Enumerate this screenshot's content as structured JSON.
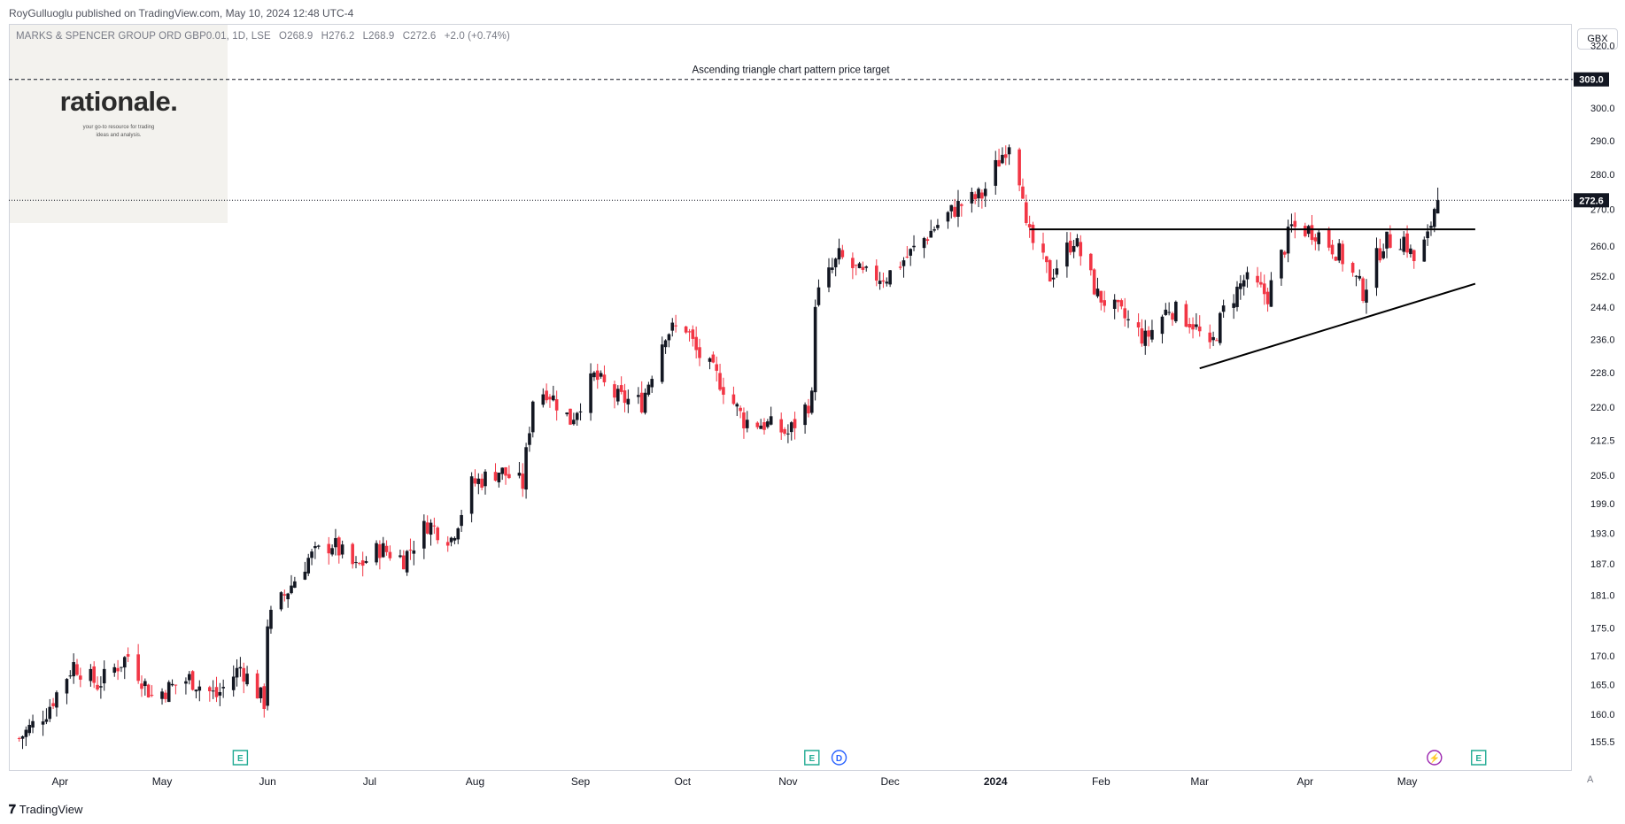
{
  "header": {
    "published": "RoyGulluoglu published on TradingView.com, May 10, 2024 12:48 UTC-4",
    "symbol_parts": [
      "MARKS & SPENCER GROUP ORD GBP0.01, 1D, LSE",
      "O268.9",
      "H276.2",
      "L268.9",
      "C272.6",
      "+2.0 (+0.74%)"
    ]
  },
  "watermark": {
    "logo_text": "rationale.",
    "tagline_line1": "your go-to resource for trading",
    "tagline_line2": "ideas and analysis."
  },
  "footer": {
    "brand": "TradingView",
    "currency_button": "GBX",
    "auto_label": "A"
  },
  "annotations": {
    "target_label": "Ascending triangle chart pattern price target",
    "target_price": "309.0",
    "last_price": "272.6"
  },
  "colors": {
    "up": "#131722",
    "down": "#f23645",
    "frame": "#d1d4dc",
    "axis_text": "#131722",
    "event_earnings": "#22ab94",
    "event_dividend": "#2962ff",
    "event_split": "#9c27b0"
  },
  "chart_data": {
    "type": "candlestick",
    "y_scale": "log",
    "ylim": [
      151,
      327
    ],
    "ylabel": "GBX",
    "y_ticks": [
      155.5,
      160.0,
      165.0,
      170.0,
      175.0,
      181.0,
      187.0,
      193.0,
      199.0,
      205.0,
      212.5,
      220.0,
      228.0,
      236.0,
      244.0,
      252.0,
      260.0,
      270.0,
      280.0,
      290.0,
      300.0,
      320.0
    ],
    "x_ticks": [
      {
        "label": "Apr",
        "date": "2023-04-01"
      },
      {
        "label": "May",
        "date": "2023-05-01"
      },
      {
        "label": "Jun",
        "date": "2023-06-01"
      },
      {
        "label": "Jul",
        "date": "2023-07-01"
      },
      {
        "label": "Aug",
        "date": "2023-08-01"
      },
      {
        "label": "Sep",
        "date": "2023-09-01"
      },
      {
        "label": "Oct",
        "date": "2023-10-01"
      },
      {
        "label": "Nov",
        "date": "2023-11-01"
      },
      {
        "label": "Dec",
        "date": "2023-12-01"
      },
      {
        "label": "2024",
        "date": "2024-01-01",
        "bold": true
      },
      {
        "label": "Feb",
        "date": "2024-02-01"
      },
      {
        "label": "Mar",
        "date": "2024-03-01"
      },
      {
        "label": "Apr",
        "date": "2024-04-01"
      },
      {
        "label": "May",
        "date": "2024-05-01"
      }
    ],
    "closes_anchor": [
      [
        "2023-03-20",
        156.0
      ],
      [
        "2023-03-28",
        160.5
      ],
      [
        "2023-04-05",
        168.5
      ],
      [
        "2023-04-12",
        165.0
      ],
      [
        "2023-04-21",
        170.0
      ],
      [
        "2023-04-28",
        163.0
      ],
      [
        "2023-05-09",
        166.0
      ],
      [
        "2023-05-17",
        163.0
      ],
      [
        "2023-05-24",
        168.0
      ],
      [
        "2023-05-31",
        162.0
      ],
      [
        "2023-06-01",
        176.0
      ],
      [
        "2023-06-06",
        181.0
      ],
      [
        "2023-06-13",
        188.0
      ],
      [
        "2023-06-20",
        191.0
      ],
      [
        "2023-06-27",
        186.0
      ],
      [
        "2023-07-04",
        190.0
      ],
      [
        "2023-07-11",
        188.0
      ],
      [
        "2023-07-18",
        195.0
      ],
      [
        "2023-07-25",
        192.0
      ],
      [
        "2023-07-31",
        203.0
      ],
      [
        "2023-08-08",
        206.0
      ],
      [
        "2023-08-15",
        203.0
      ],
      [
        "2023-08-18",
        222.0
      ],
      [
        "2023-08-22",
        224.0
      ],
      [
        "2023-08-29",
        217.0
      ],
      [
        "2023-09-05",
        227.0
      ],
      [
        "2023-09-12",
        222.0
      ],
      [
        "2023-09-19",
        221.0
      ],
      [
        "2023-09-26",
        238.0
      ],
      [
        "2023-10-02",
        239.0
      ],
      [
        "2023-10-05",
        233.0
      ],
      [
        "2023-10-12",
        226.0
      ],
      [
        "2023-10-19",
        217.0
      ],
      [
        "2023-10-26",
        216.0
      ],
      [
        "2023-11-01",
        214.0
      ],
      [
        "2023-11-08",
        222.0
      ],
      [
        "2023-11-09",
        246.0
      ],
      [
        "2023-11-16",
        257.0
      ],
      [
        "2023-11-23",
        252.0
      ],
      [
        "2023-11-30",
        252.0
      ],
      [
        "2023-12-07",
        258.0
      ],
      [
        "2023-12-14",
        265.0
      ],
      [
        "2023-12-21",
        271.0
      ],
      [
        "2023-12-28",
        274.0
      ],
      [
        "2024-01-05",
        290.0
      ],
      [
        "2024-01-09",
        276.0
      ],
      [
        "2024-01-10",
        264.0
      ],
      [
        "2024-01-17",
        252.0
      ],
      [
        "2024-01-24",
        262.0
      ],
      [
        "2024-01-31",
        247.0
      ],
      [
        "2024-02-07",
        242.0
      ],
      [
        "2024-02-14",
        236.0
      ],
      [
        "2024-02-21",
        244.0
      ],
      [
        "2024-02-28",
        240.0
      ],
      [
        "2024-03-04",
        233.0
      ],
      [
        "2024-03-08",
        243.0
      ],
      [
        "2024-03-14",
        251.0
      ],
      [
        "2024-03-21",
        247.0
      ],
      [
        "2024-03-28",
        265.0
      ],
      [
        "2024-04-04",
        264.0
      ],
      [
        "2024-04-11",
        258.0
      ],
      [
        "2024-04-18",
        248.0
      ],
      [
        "2024-04-24",
        261.0
      ],
      [
        "2024-04-30",
        262.0
      ],
      [
        "2024-05-03",
        256.0
      ],
      [
        "2024-05-07",
        262.0
      ],
      [
        "2024-05-09",
        270.6
      ],
      [
        "2024-05-10",
        272.6
      ]
    ],
    "last_candle": {
      "date": "2024-05-10",
      "open": 268.9,
      "high": 276.2,
      "low": 268.9,
      "close": 272.6
    },
    "resistance_line": {
      "from": [
        "2024-01-11",
        264.5
      ],
      "to": [
        "2024-05-21",
        264.5
      ]
    },
    "support_line": {
      "from": [
        "2024-03-01",
        229.0
      ],
      "to": [
        "2024-05-21",
        250.0
      ]
    },
    "target_line": {
      "price": 309.0
    },
    "current_price_line": {
      "price": 272.6
    },
    "events": [
      {
        "type": "E",
        "date": "2023-05-24"
      },
      {
        "type": "E",
        "date": "2023-11-08"
      },
      {
        "type": "D",
        "date": "2023-11-16"
      },
      {
        "type": "S",
        "date": "2024-05-09"
      },
      {
        "type": "E",
        "date": "2024-05-22"
      }
    ]
  }
}
